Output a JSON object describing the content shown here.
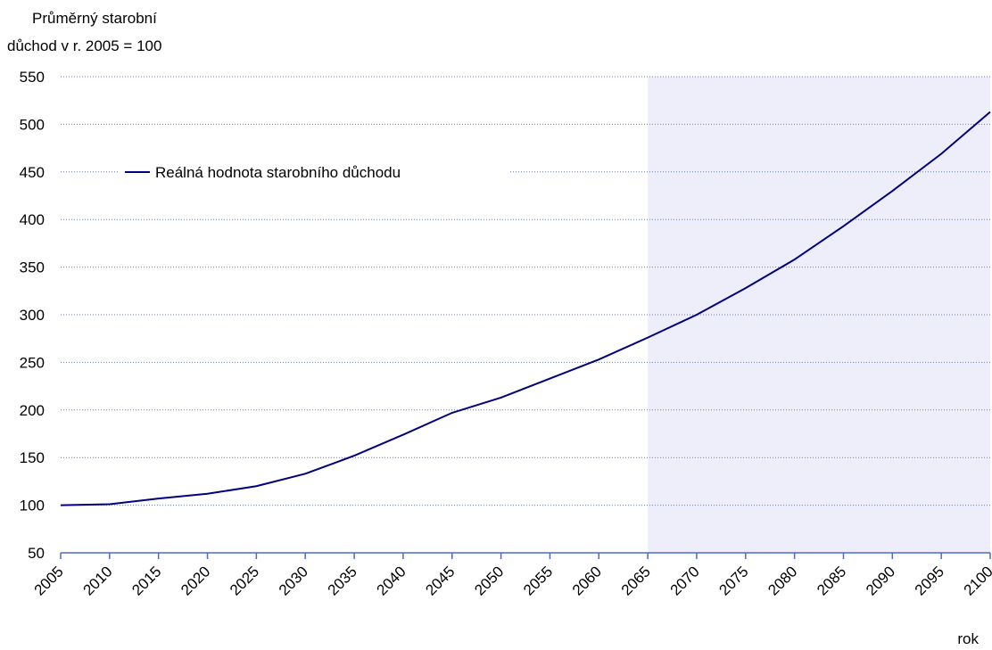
{
  "chart_data": {
    "type": "line",
    "ylabel": [
      "Průměrný starobní",
      "důchod v r. 2005 = 100"
    ],
    "xlabel": "rok",
    "x": [
      2005,
      2010,
      2015,
      2020,
      2025,
      2030,
      2035,
      2040,
      2045,
      2050,
      2055,
      2060,
      2065,
      2070,
      2075,
      2080,
      2085,
      2090,
      2095,
      2100
    ],
    "series": [
      {
        "name": "Reálná hodnota starobního důchodu",
        "color": "#000080",
        "values": [
          100,
          101,
          107,
          112,
          120,
          133,
          152,
          174,
          197,
          213,
          233,
          253,
          276,
          300,
          328,
          358,
          393,
          430,
          469,
          513
        ]
      }
    ],
    "xlim": [
      2005,
      2100
    ],
    "xticks": [
      2005,
      2010,
      2015,
      2020,
      2025,
      2030,
      2035,
      2040,
      2045,
      2050,
      2055,
      2060,
      2065,
      2070,
      2075,
      2080,
      2085,
      2090,
      2095,
      2100
    ],
    "ylim": [
      50,
      550
    ],
    "yticks": [
      50,
      100,
      150,
      200,
      250,
      300,
      350,
      400,
      450,
      500,
      550
    ],
    "highlight_x": [
      2065,
      2100
    ],
    "highlight_color": "#eeeefa",
    "grid": true,
    "legend": "upper left"
  }
}
